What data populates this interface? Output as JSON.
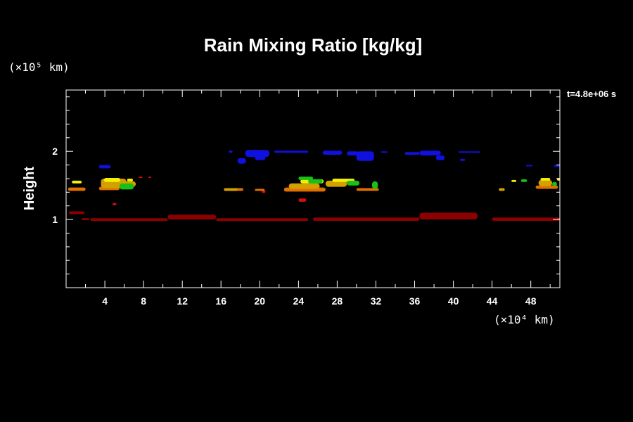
{
  "chart_data": {
    "type": "heatmap",
    "title": "Rain Mixing Ratio [kg/kg]",
    "ylabel": "Height",
    "y_unit": "(×10⁵ km)",
    "x_unit": "(×10⁴ km)",
    "annotation": "t=4.8e+06 s",
    "xlim": [
      0,
      51
    ],
    "ylim": [
      0,
      2.9
    ],
    "x_ticks": [
      "4",
      "8",
      "12",
      "16",
      "20",
      "24",
      "28",
      "32",
      "36",
      "40",
      "44",
      "48"
    ],
    "y_ticks": [
      "1",
      "2"
    ],
    "colors": {
      "dark_red": "#8b0000",
      "red": "#d01010",
      "orange": "#e07000",
      "gold": "#d4a000",
      "yellow": "#f0f000",
      "green": "#18c018",
      "blue": "#1010e0"
    },
    "regions": [
      {
        "color": "dark_red",
        "x": [
          2.5,
          10.5
        ],
        "y": [
          0.98,
          1.02
        ]
      },
      {
        "color": "dark_red",
        "x": [
          10.5,
          15.5
        ],
        "y": [
          1.0,
          1.07
        ]
      },
      {
        "color": "dark_red",
        "x": [
          15.5,
          25.0
        ],
        "y": [
          0.98,
          1.02
        ]
      },
      {
        "color": "dark_red",
        "x": [
          25.5,
          36.5
        ],
        "y": [
          0.98,
          1.03
        ]
      },
      {
        "color": "dark_red",
        "x": [
          36.5,
          42.5
        ],
        "y": [
          1.0,
          1.1
        ]
      },
      {
        "color": "dark_red",
        "x": [
          44.0,
          51.0
        ],
        "y": [
          0.98,
          1.03
        ]
      },
      {
        "color": "dark_red",
        "x": [
          0.3,
          1.9
        ],
        "y": [
          1.08,
          1.12
        ]
      },
      {
        "color": "dark_red",
        "x": [
          1.6,
          2.4
        ],
        "y": [
          0.99,
          1.02
        ]
      },
      {
        "color": "red",
        "x": [
          50.7,
          51.0
        ],
        "y": [
          0.99,
          1.02
        ]
      },
      {
        "color": "red",
        "x": [
          4.8,
          5.2
        ],
        "y": [
          1.21,
          1.24
        ]
      },
      {
        "color": "red",
        "x": [
          24.0,
          24.8
        ],
        "y": [
          1.26,
          1.31
        ]
      },
      {
        "color": "red",
        "x": [
          7.5,
          7.9
        ],
        "y": [
          1.61,
          1.63
        ]
      },
      {
        "color": "red",
        "x": [
          8.5,
          8.8
        ],
        "y": [
          1.61,
          1.63
        ]
      },
      {
        "color": "red",
        "x": [
          20.2,
          20.6
        ],
        "y": [
          1.39,
          1.43
        ]
      },
      {
        "color": "orange",
        "x": [
          16.3,
          18.3
        ],
        "y": [
          1.42,
          1.46
        ]
      },
      {
        "color": "orange",
        "x": [
          19.5,
          20.5
        ],
        "y": [
          1.42,
          1.45
        ]
      },
      {
        "color": "orange",
        "x": [
          0.2,
          2.0
        ],
        "y": [
          1.42,
          1.47
        ]
      },
      {
        "color": "orange",
        "x": [
          3.4,
          5.5
        ],
        "y": [
          1.43,
          1.48
        ]
      },
      {
        "color": "orange",
        "x": [
          22.5,
          26.8
        ],
        "y": [
          1.41,
          1.47
        ]
      },
      {
        "color": "orange",
        "x": [
          30.0,
          32.3
        ],
        "y": [
          1.42,
          1.46
        ]
      },
      {
        "color": "orange",
        "x": [
          48.5,
          50.8
        ],
        "y": [
          1.45,
          1.5
        ]
      },
      {
        "color": "gold",
        "x": [
          3.6,
          6.2
        ],
        "y": [
          1.46,
          1.6
        ]
      },
      {
        "color": "gold",
        "x": [
          6.0,
          7.2
        ],
        "y": [
          1.48,
          1.56
        ]
      },
      {
        "color": "gold",
        "x": [
          23.0,
          26.2
        ],
        "y": [
          1.45,
          1.53
        ]
      },
      {
        "color": "gold",
        "x": [
          26.8,
          29.0
        ],
        "y": [
          1.48,
          1.57
        ]
      },
      {
        "color": "gold",
        "x": [
          48.8,
          50.2
        ],
        "y": [
          1.49,
          1.58
        ]
      },
      {
        "color": "gold",
        "x": [
          44.7,
          45.3
        ],
        "y": [
          1.42,
          1.46
        ]
      },
      {
        "color": "gold",
        "x": [
          16.3,
          17.7
        ],
        "y": [
          1.42,
          1.46
        ]
      },
      {
        "color": "yellow",
        "x": [
          0.6,
          1.6
        ],
        "y": [
          1.53,
          1.57
        ]
      },
      {
        "color": "yellow",
        "x": [
          3.9,
          5.6
        ],
        "y": [
          1.55,
          1.61
        ]
      },
      {
        "color": "yellow",
        "x": [
          6.3,
          6.9
        ],
        "y": [
          1.56,
          1.6
        ]
      },
      {
        "color": "yellow",
        "x": [
          24.2,
          26.6
        ],
        "y": [
          1.53,
          1.59
        ]
      },
      {
        "color": "yellow",
        "x": [
          27.5,
          29.8
        ],
        "y": [
          1.55,
          1.6
        ]
      },
      {
        "color": "yellow",
        "x": [
          46.0,
          46.5
        ],
        "y": [
          1.55,
          1.58
        ]
      },
      {
        "color": "yellow",
        "x": [
          49.0,
          50.0
        ],
        "y": [
          1.57,
          1.61
        ]
      },
      {
        "color": "yellow",
        "x": [
          50.7,
          51.0
        ],
        "y": [
          1.57,
          1.61
        ]
      },
      {
        "color": "green",
        "x": [
          5.5,
          7.0
        ],
        "y": [
          1.44,
          1.53
        ]
      },
      {
        "color": "green",
        "x": [
          24.0,
          25.5
        ],
        "y": [
          1.58,
          1.63
        ]
      },
      {
        "color": "green",
        "x": [
          25.0,
          26.5
        ],
        "y": [
          1.53,
          1.59
        ]
      },
      {
        "color": "green",
        "x": [
          29.0,
          30.3
        ],
        "y": [
          1.5,
          1.57
        ]
      },
      {
        "color": "green",
        "x": [
          31.6,
          32.2
        ],
        "y": [
          1.45,
          1.56
        ]
      },
      {
        "color": "green",
        "x": [
          47.0,
          47.6
        ],
        "y": [
          1.55,
          1.59
        ]
      },
      {
        "color": "green",
        "x": [
          50.2,
          50.7
        ],
        "y": [
          1.49,
          1.55
        ]
      },
      {
        "color": "blue",
        "x": [
          3.4,
          4.6
        ],
        "y": [
          1.75,
          1.8
        ]
      },
      {
        "color": "blue",
        "x": [
          16.8,
          17.2
        ],
        "y": [
          1.98,
          2.01
        ]
      },
      {
        "color": "blue",
        "x": [
          17.7,
          18.6
        ],
        "y": [
          1.82,
          1.9
        ]
      },
      {
        "color": "blue",
        "x": [
          18.5,
          21.0
        ],
        "y": [
          1.92,
          2.02
        ]
      },
      {
        "color": "blue",
        "x": [
          19.5,
          20.6
        ],
        "y": [
          1.87,
          1.94
        ]
      },
      {
        "color": "blue",
        "x": [
          21.5,
          25.0
        ],
        "y": [
          1.98,
          2.01
        ]
      },
      {
        "color": "blue",
        "x": [
          26.5,
          28.5
        ],
        "y": [
          1.95,
          2.01
        ]
      },
      {
        "color": "blue",
        "x": [
          29.0,
          30.2
        ],
        "y": [
          1.94,
          2.0
        ]
      },
      {
        "color": "blue",
        "x": [
          30.0,
          31.8
        ],
        "y": [
          1.86,
          2.0
        ]
      },
      {
        "color": "blue",
        "x": [
          32.5,
          33.2
        ],
        "y": [
          1.98,
          2.0
        ]
      },
      {
        "color": "blue",
        "x": [
          35.0,
          36.5
        ],
        "y": [
          1.95,
          1.99
        ]
      },
      {
        "color": "blue",
        "x": [
          36.5,
          38.7
        ],
        "y": [
          1.94,
          2.01
        ]
      },
      {
        "color": "blue",
        "x": [
          38.2,
          39.1
        ],
        "y": [
          1.87,
          1.94
        ]
      },
      {
        "color": "blue",
        "x": [
          40.5,
          42.8
        ],
        "y": [
          1.98,
          2.0
        ]
      },
      {
        "color": "blue",
        "x": [
          40.7,
          41.2
        ],
        "y": [
          1.86,
          1.89
        ]
      },
      {
        "color": "blue",
        "x": [
          47.5,
          48.2
        ],
        "y": [
          1.78,
          1.8
        ]
      },
      {
        "color": "blue",
        "x": [
          50.4,
          51.0
        ],
        "y": [
          1.77,
          1.8
        ]
      }
    ]
  }
}
